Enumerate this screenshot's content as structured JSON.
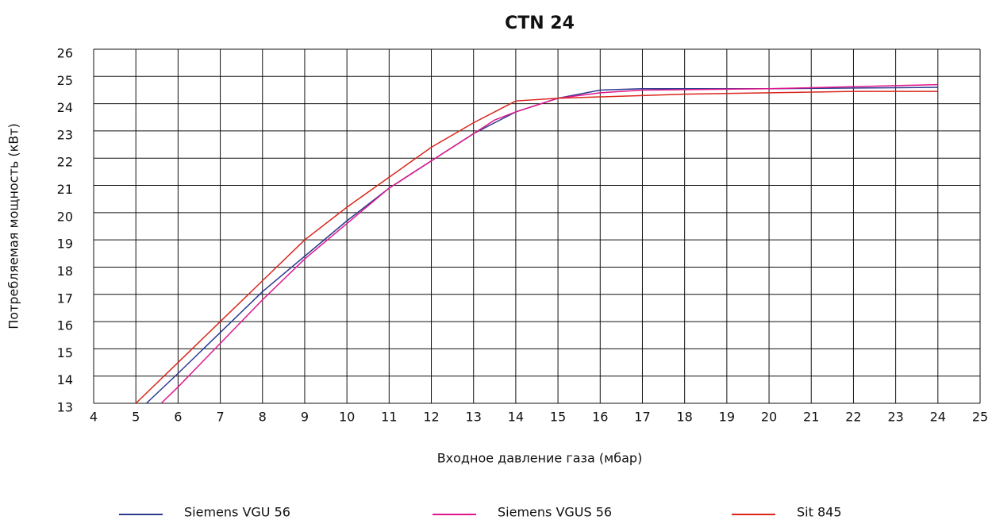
{
  "chart_data": {
    "type": "line",
    "title": "CTN 24",
    "x_label": "Входное давление газа (мбар)",
    "y_label": "Потребляемая мощность (кВт)",
    "xlim": [
      4,
      25
    ],
    "xticks": [
      4,
      5,
      6,
      7,
      8,
      9,
      10,
      11,
      12,
      13,
      14,
      15,
      16,
      17,
      18,
      19,
      20,
      21,
      22,
      23,
      24,
      25
    ],
    "ylim": [
      13,
      26
    ],
    "yticks": [
      13,
      14,
      15,
      16,
      17,
      18,
      19,
      20,
      21,
      22,
      23,
      24,
      25,
      26
    ],
    "grid": true,
    "legend": "bottom",
    "series": [
      {
        "name": "Siemens VGU 56",
        "color": "#2b3a8f",
        "x": [
          5.25,
          6,
          7,
          8,
          9,
          10,
          11,
          12,
          13,
          14,
          15,
          16,
          17,
          20,
          24
        ],
        "values": [
          13,
          14.1,
          15.6,
          17.1,
          18.4,
          19.7,
          20.9,
          21.9,
          22.9,
          23.7,
          24.2,
          24.5,
          24.55,
          24.55,
          24.6
        ]
      },
      {
        "name": "Siemens VGUS 56",
        "color": "#e0168c",
        "x": [
          5.6,
          6,
          7,
          8,
          9,
          10,
          11,
          12,
          13,
          13.5,
          14,
          15,
          16,
          17,
          20,
          24
        ],
        "values": [
          13,
          13.6,
          15.2,
          16.8,
          18.3,
          19.6,
          20.9,
          21.9,
          22.9,
          23.4,
          23.7,
          24.2,
          24.4,
          24.5,
          24.55,
          24.7
        ]
      },
      {
        "name": "Sit 845",
        "color": "#d9261c",
        "x": [
          5,
          6,
          7,
          8,
          9,
          10,
          11,
          12,
          13,
          14,
          15,
          16,
          17,
          18,
          20,
          22,
          24
        ],
        "values": [
          13,
          14.5,
          16,
          17.5,
          19,
          20.2,
          21.3,
          22.4,
          23.3,
          24.1,
          24.2,
          24.25,
          24.3,
          24.35,
          24.4,
          24.45,
          24.45
        ]
      }
    ]
  }
}
